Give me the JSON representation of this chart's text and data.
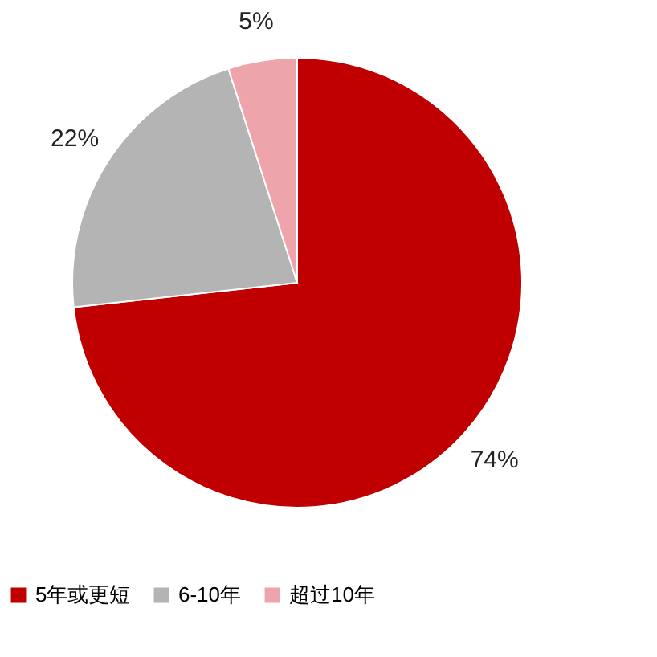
{
  "chart_data": {
    "type": "pie",
    "categories": [
      "5年或更短",
      "6-10年",
      "超过10年"
    ],
    "values": [
      74,
      22,
      5
    ],
    "colors": [
      "#c00000",
      "#b4b4b4",
      "#eda4ab"
    ],
    "value_labels": [
      "74%",
      "22%",
      "5%"
    ],
    "legend": "bottom"
  }
}
